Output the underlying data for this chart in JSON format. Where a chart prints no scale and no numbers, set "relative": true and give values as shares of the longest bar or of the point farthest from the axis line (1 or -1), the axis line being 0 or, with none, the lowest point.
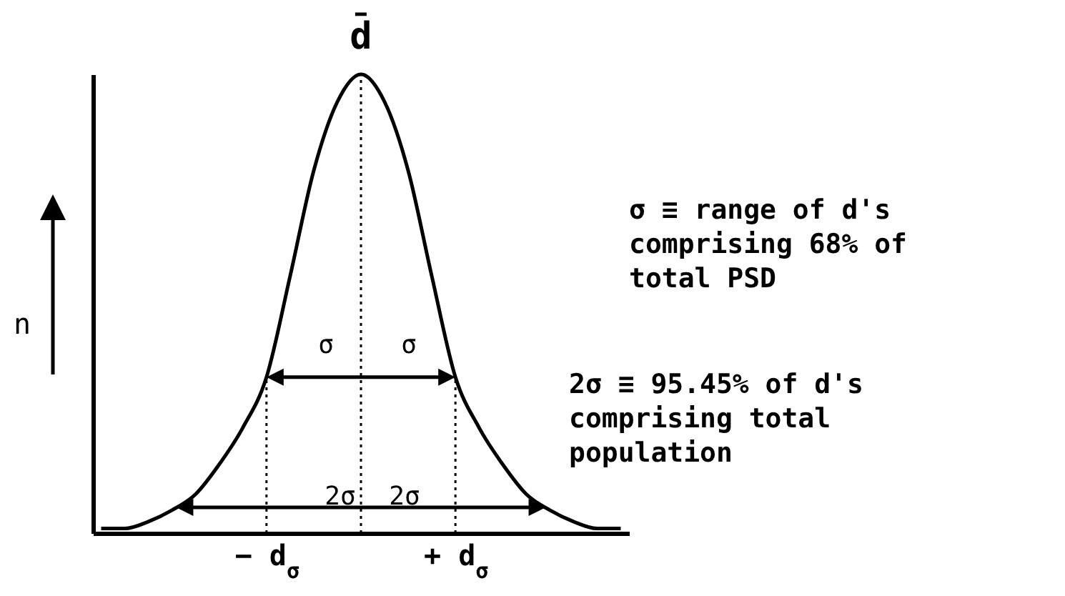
{
  "chart_data": {
    "type": "line",
    "relative": true,
    "ylabel": "n",
    "categories": [
      null,
      null,
      null,
      null,
      null,
      null,
      null,
      "− d$_{σ}$",
      null,
      null,
      null,
      null,
      null,
      null,
      null,
      "+ d$_{σ}$",
      null,
      null,
      null,
      null,
      null,
      null,
      null
    ],
    "series": [
      {
        "color": "#000000",
        "values": [
          0.01,
          0.01,
          0.025,
          0.05,
          0.085,
          0.15,
          0.23,
          0.34,
          0.56,
          0.79,
          0.94,
          1,
          0.94,
          0.79,
          0.56,
          0.34,
          0.23,
          0.15,
          0.085,
          0.05,
          0.025,
          0.01,
          0.01
        ]
      }
    ],
    "ref_lines": [
      {
        "axis": "x",
        "value": "− d$_{σ}$",
        "line_style": "dotted"
      },
      {
        "axis": "x",
        "value": "+ d$_{σ}$",
        "line_style": "dotted"
      }
    ],
    "annotations": [
      {
        "text": "d̄",
        "y": 1
      },
      "σ",
      "σ",
      "2σ",
      "2σ",
      "σ ≡ range of d's comprising 68% of total PSD",
      "2σ ≡ 95.45% of d's comprising total population"
    ]
  }
}
